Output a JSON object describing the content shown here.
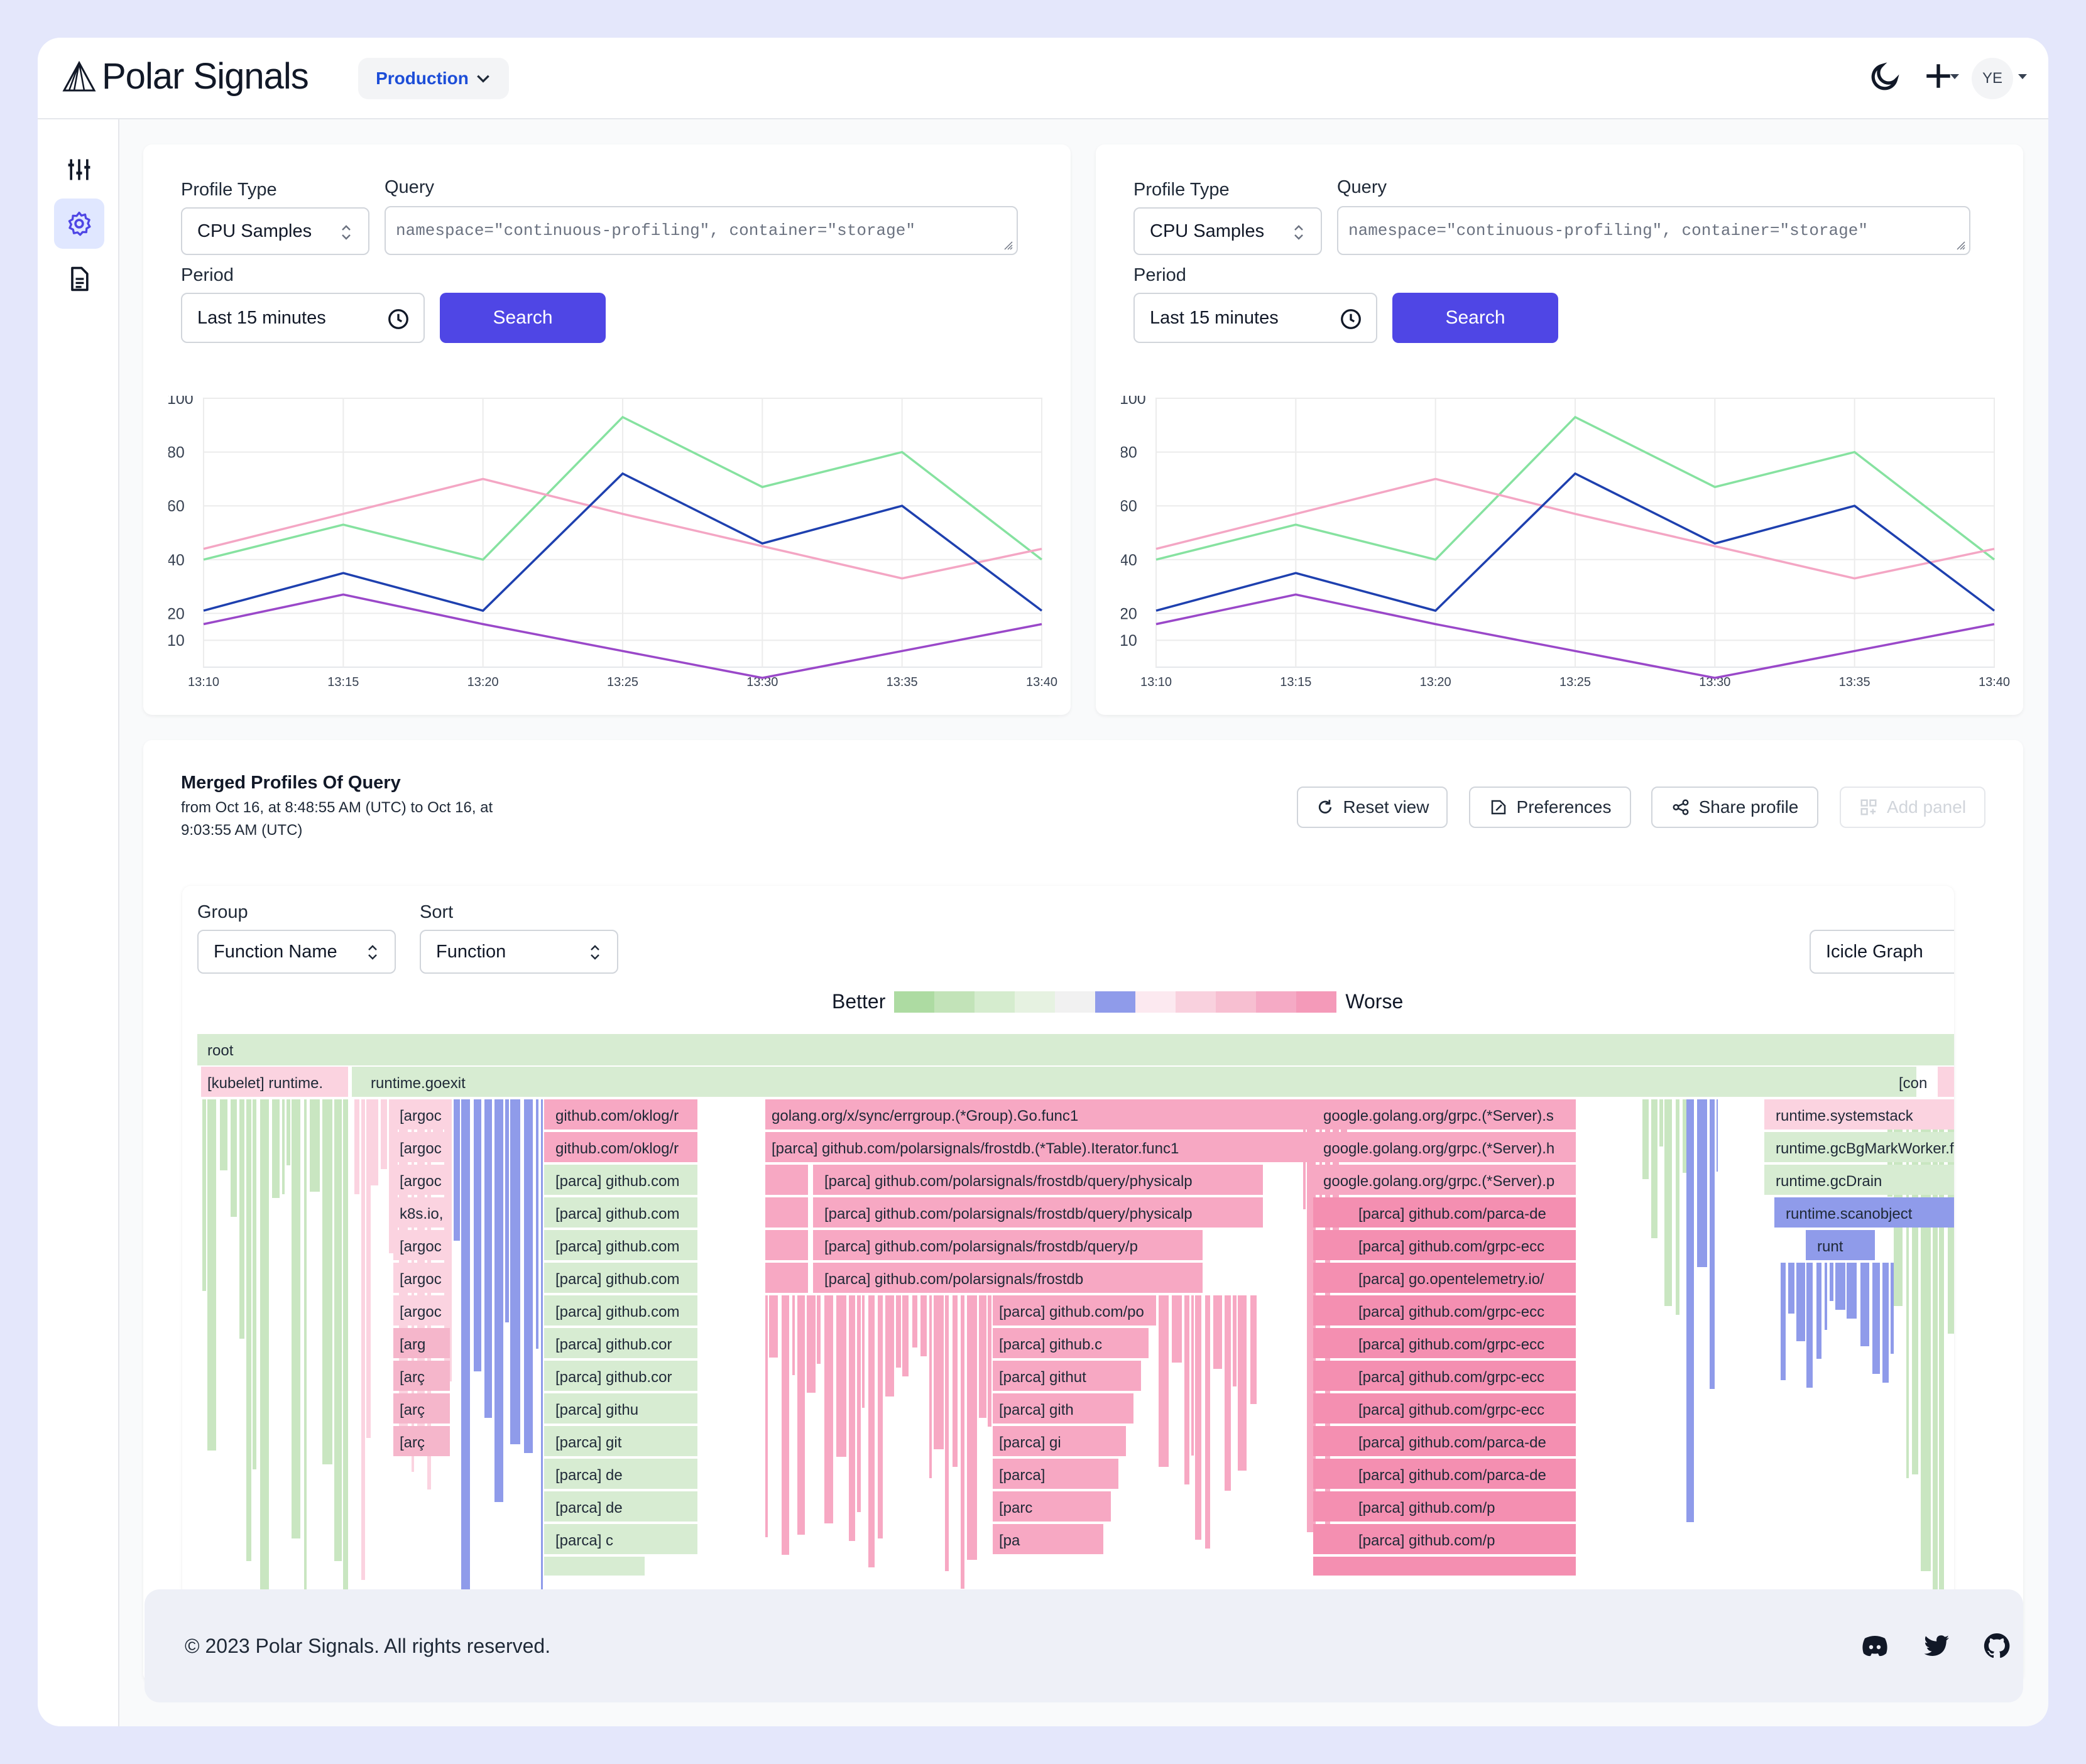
{
  "header": {
    "brand": "Polar Signals",
    "environment": "Production",
    "user_initials": "YE"
  },
  "sidebar": {
    "items": [
      {
        "icon": "sliders-icon",
        "active": false
      },
      {
        "icon": "gear-icon",
        "active": true
      },
      {
        "icon": "document-icon",
        "active": false
      }
    ]
  },
  "panels": [
    {
      "profile_type_label": "Profile Type",
      "profile_type_value": "CPU Samples",
      "query_label": "Query",
      "query_value": "namespace=\"continuous-profiling\", container=\"storage\"",
      "period_label": "Period",
      "period_value": "Last 15 minutes",
      "search_label": "Search"
    },
    {
      "profile_type_label": "Profile Type",
      "profile_type_value": "CPU Samples",
      "query_label": "Query",
      "query_value": "namespace=\"continuous-profiling\", container=\"storage\"",
      "period_label": "Period",
      "period_value": "Last 15 minutes",
      "search_label": "Search"
    }
  ],
  "chart_data": [
    {
      "type": "line",
      "x": [
        "13:10",
        "13:15",
        "13:20",
        "13:25",
        "13:30",
        "13:35",
        "13:40"
      ],
      "y_ticks": [
        10,
        20,
        40,
        60,
        80,
        100
      ],
      "ylim": [
        0,
        100
      ],
      "grid": true,
      "series": [
        {
          "color": "#86e2a0",
          "values": [
            40,
            53,
            40,
            93,
            67,
            80,
            40
          ]
        },
        {
          "color": "#f4a6c4",
          "values": [
            44,
            57,
            70,
            57,
            45,
            33,
            44
          ]
        },
        {
          "color": "#1e40af",
          "values": [
            21,
            35,
            21,
            72,
            46,
            60,
            21
          ]
        },
        {
          "color": "#9a48c9",
          "values": [
            16,
            27,
            16,
            6,
            -4,
            6,
            16
          ]
        }
      ]
    },
    {
      "type": "line",
      "x": [
        "13:10",
        "13:15",
        "13:20",
        "13:25",
        "13:30",
        "13:35",
        "13:40"
      ],
      "y_ticks": [
        10,
        20,
        40,
        60,
        80,
        100
      ],
      "ylim": [
        0,
        100
      ],
      "grid": true,
      "series": [
        {
          "color": "#86e2a0",
          "values": [
            40,
            53,
            40,
            93,
            67,
            80,
            40
          ]
        },
        {
          "color": "#f4a6c4",
          "values": [
            44,
            57,
            70,
            57,
            45,
            33,
            44
          ]
        },
        {
          "color": "#1e40af",
          "values": [
            21,
            35,
            21,
            72,
            46,
            60,
            21
          ]
        },
        {
          "color": "#9a48c9",
          "values": [
            16,
            27,
            16,
            6,
            -4,
            6,
            16
          ]
        }
      ]
    }
  ],
  "merged": {
    "title": "Merged Profiles Of Query",
    "subtitle": "from Oct 16, at 8:48:55 AM (UTC) to Oct 16, at 9:03:55 AM (UTC)",
    "buttons": {
      "reset": "Reset view",
      "preferences": "Preferences",
      "share": "Share profile",
      "add_panel": "Add panel"
    },
    "group_label": "Group",
    "group_value": "Function Name",
    "sort_label": "Sort",
    "sort_value": "Function",
    "view_value": "Icicle Graph",
    "legend_better": "Better",
    "legend_worse": "Worse",
    "legend_colors": [
      "#addba2",
      "#c2e3b8",
      "#d5ecce",
      "#e6f2e1",
      "#f1f1f1",
      "#8f9bea",
      "#fce9f0",
      "#f9d1de",
      "#f7bfd1",
      "#f5aac5",
      "#f49ab9"
    ]
  },
  "flame": {
    "root": "root",
    "row1": {
      "kubelet": "[kubelet] runtime.",
      "goexit": "runtime.goexit",
      "con": "[con"
    },
    "col_oklog": [
      "github.com/oklog/r",
      "github.com/oklog/r",
      "[parca] github.com",
      "[parca] github.com",
      "[parca] github.com",
      "[parca] github.com",
      "[parca] github.com",
      "[parca] github.cor",
      "[parca] github.cor",
      "[parca] githu",
      "[parca] git",
      "[parca] de",
      "[parca] de",
      "[parca] c"
    ],
    "col_argo": [
      "[argoc",
      "[argoc",
      "[argoc",
      "k8s.io,",
      "[argoc",
      "[argoc",
      "[argoc",
      "[arg",
      "[arç",
      "[arç",
      "[arç"
    ],
    "col_frost": [
      "golang.org/x/sync/errgroup.(*Group).Go.func1",
      "[parca] github.com/polarsignals/frostdb.(*Table).Iterator.func1",
      "[parca] github.com/polarsignals/frostdb/query/physicalp",
      "[parca] github.com/polarsignals/frostdb/query/physicalp",
      "[parca] github.com/polarsignals/frostdb/query/p",
      "[parca] github.com/polarsignals/frostdb"
    ],
    "col_frost_small": [
      "[parca] github.com/po",
      "[parca] github.c",
      "[parca] githut",
      "[parca] gith",
      "[parca] gi",
      "[parca]",
      "[parc",
      "[pa"
    ],
    "col_grpc": [
      "google.golang.org/grpc.(*Server).s",
      "google.golang.org/grpc.(*Server).h",
      "google.golang.org/grpc.(*Server).p",
      "[parca] github.com/parca-de",
      "[parca] github.com/grpc-ecc",
      "[parca] go.opentelemetry.io/",
      "[parca] github.com/grpc-ecc",
      "[parca] github.com/grpc-ecc",
      "[parca] github.com/grpc-ecc",
      "[parca] github.com/grpc-ecc",
      "[parca] github.com/parca-de",
      "[parca] github.com/parca-de",
      "[parca] github.com/p",
      "[parca] github.com/p"
    ],
    "col_runtime": [
      "runtime.systemstack",
      "runtime.gcBgMarkWorker.f",
      "runtime.gcDrain",
      "runtime.scanobject",
      "runt"
    ]
  },
  "footer": {
    "copyright": "© 2023 Polar Signals. All rights reserved."
  }
}
